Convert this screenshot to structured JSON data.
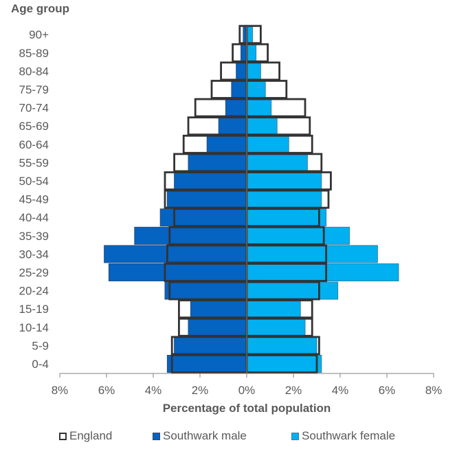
{
  "chart_data": {
    "type": "bar",
    "orientation": "horizontal-population-pyramid",
    "categories": [
      "0-4",
      "5-9",
      "10-14",
      "15-19",
      "20-24",
      "25-29",
      "30-34",
      "35-39",
      "40-44",
      "45-49",
      "50-54",
      "55-59",
      "60-64",
      "65-69",
      "70-74",
      "75-79",
      "80-84",
      "85-89",
      "90+"
    ],
    "series": [
      {
        "name": "Southwark male",
        "side": "left",
        "color": "#0563c1",
        "values": [
          3.4,
          3.1,
          2.5,
          2.4,
          3.5,
          5.9,
          6.1,
          4.8,
          3.7,
          3.4,
          3.1,
          2.5,
          1.7,
          1.2,
          0.9,
          0.65,
          0.45,
          0.25,
          0.15
        ]
      },
      {
        "name": "Southwark female",
        "side": "right",
        "color": "#00b0f0",
        "values": [
          3.2,
          3.0,
          2.5,
          2.3,
          3.9,
          6.5,
          5.6,
          4.4,
          3.4,
          3.2,
          3.2,
          2.6,
          1.8,
          1.3,
          1.05,
          0.8,
          0.6,
          0.4,
          0.25
        ]
      },
      {
        "name": "England",
        "side": "both",
        "style": "outline",
        "male": [
          3.2,
          3.2,
          2.9,
          2.9,
          3.3,
          3.5,
          3.4,
          3.3,
          3.1,
          3.5,
          3.5,
          3.1,
          2.7,
          2.5,
          2.2,
          1.5,
          1.1,
          0.6,
          0.3
        ],
        "female": [
          3.0,
          3.1,
          2.8,
          2.8,
          3.1,
          3.4,
          3.4,
          3.3,
          3.1,
          3.5,
          3.6,
          3.2,
          2.8,
          2.7,
          2.5,
          1.7,
          1.4,
          0.9,
          0.6
        ]
      }
    ],
    "xticks": [
      "8%",
      "6%",
      "4%",
      "2%",
      "0%",
      "2%",
      "4%",
      "6%",
      "8%"
    ],
    "xlim": [
      -8,
      8
    ],
    "xlabel": "Percentage of total population",
    "ylabel": "Age group",
    "grid": false,
    "legend_position": "bottom"
  },
  "legend": {
    "england": "England",
    "male": "Southwark male",
    "female": "Southwark female"
  }
}
